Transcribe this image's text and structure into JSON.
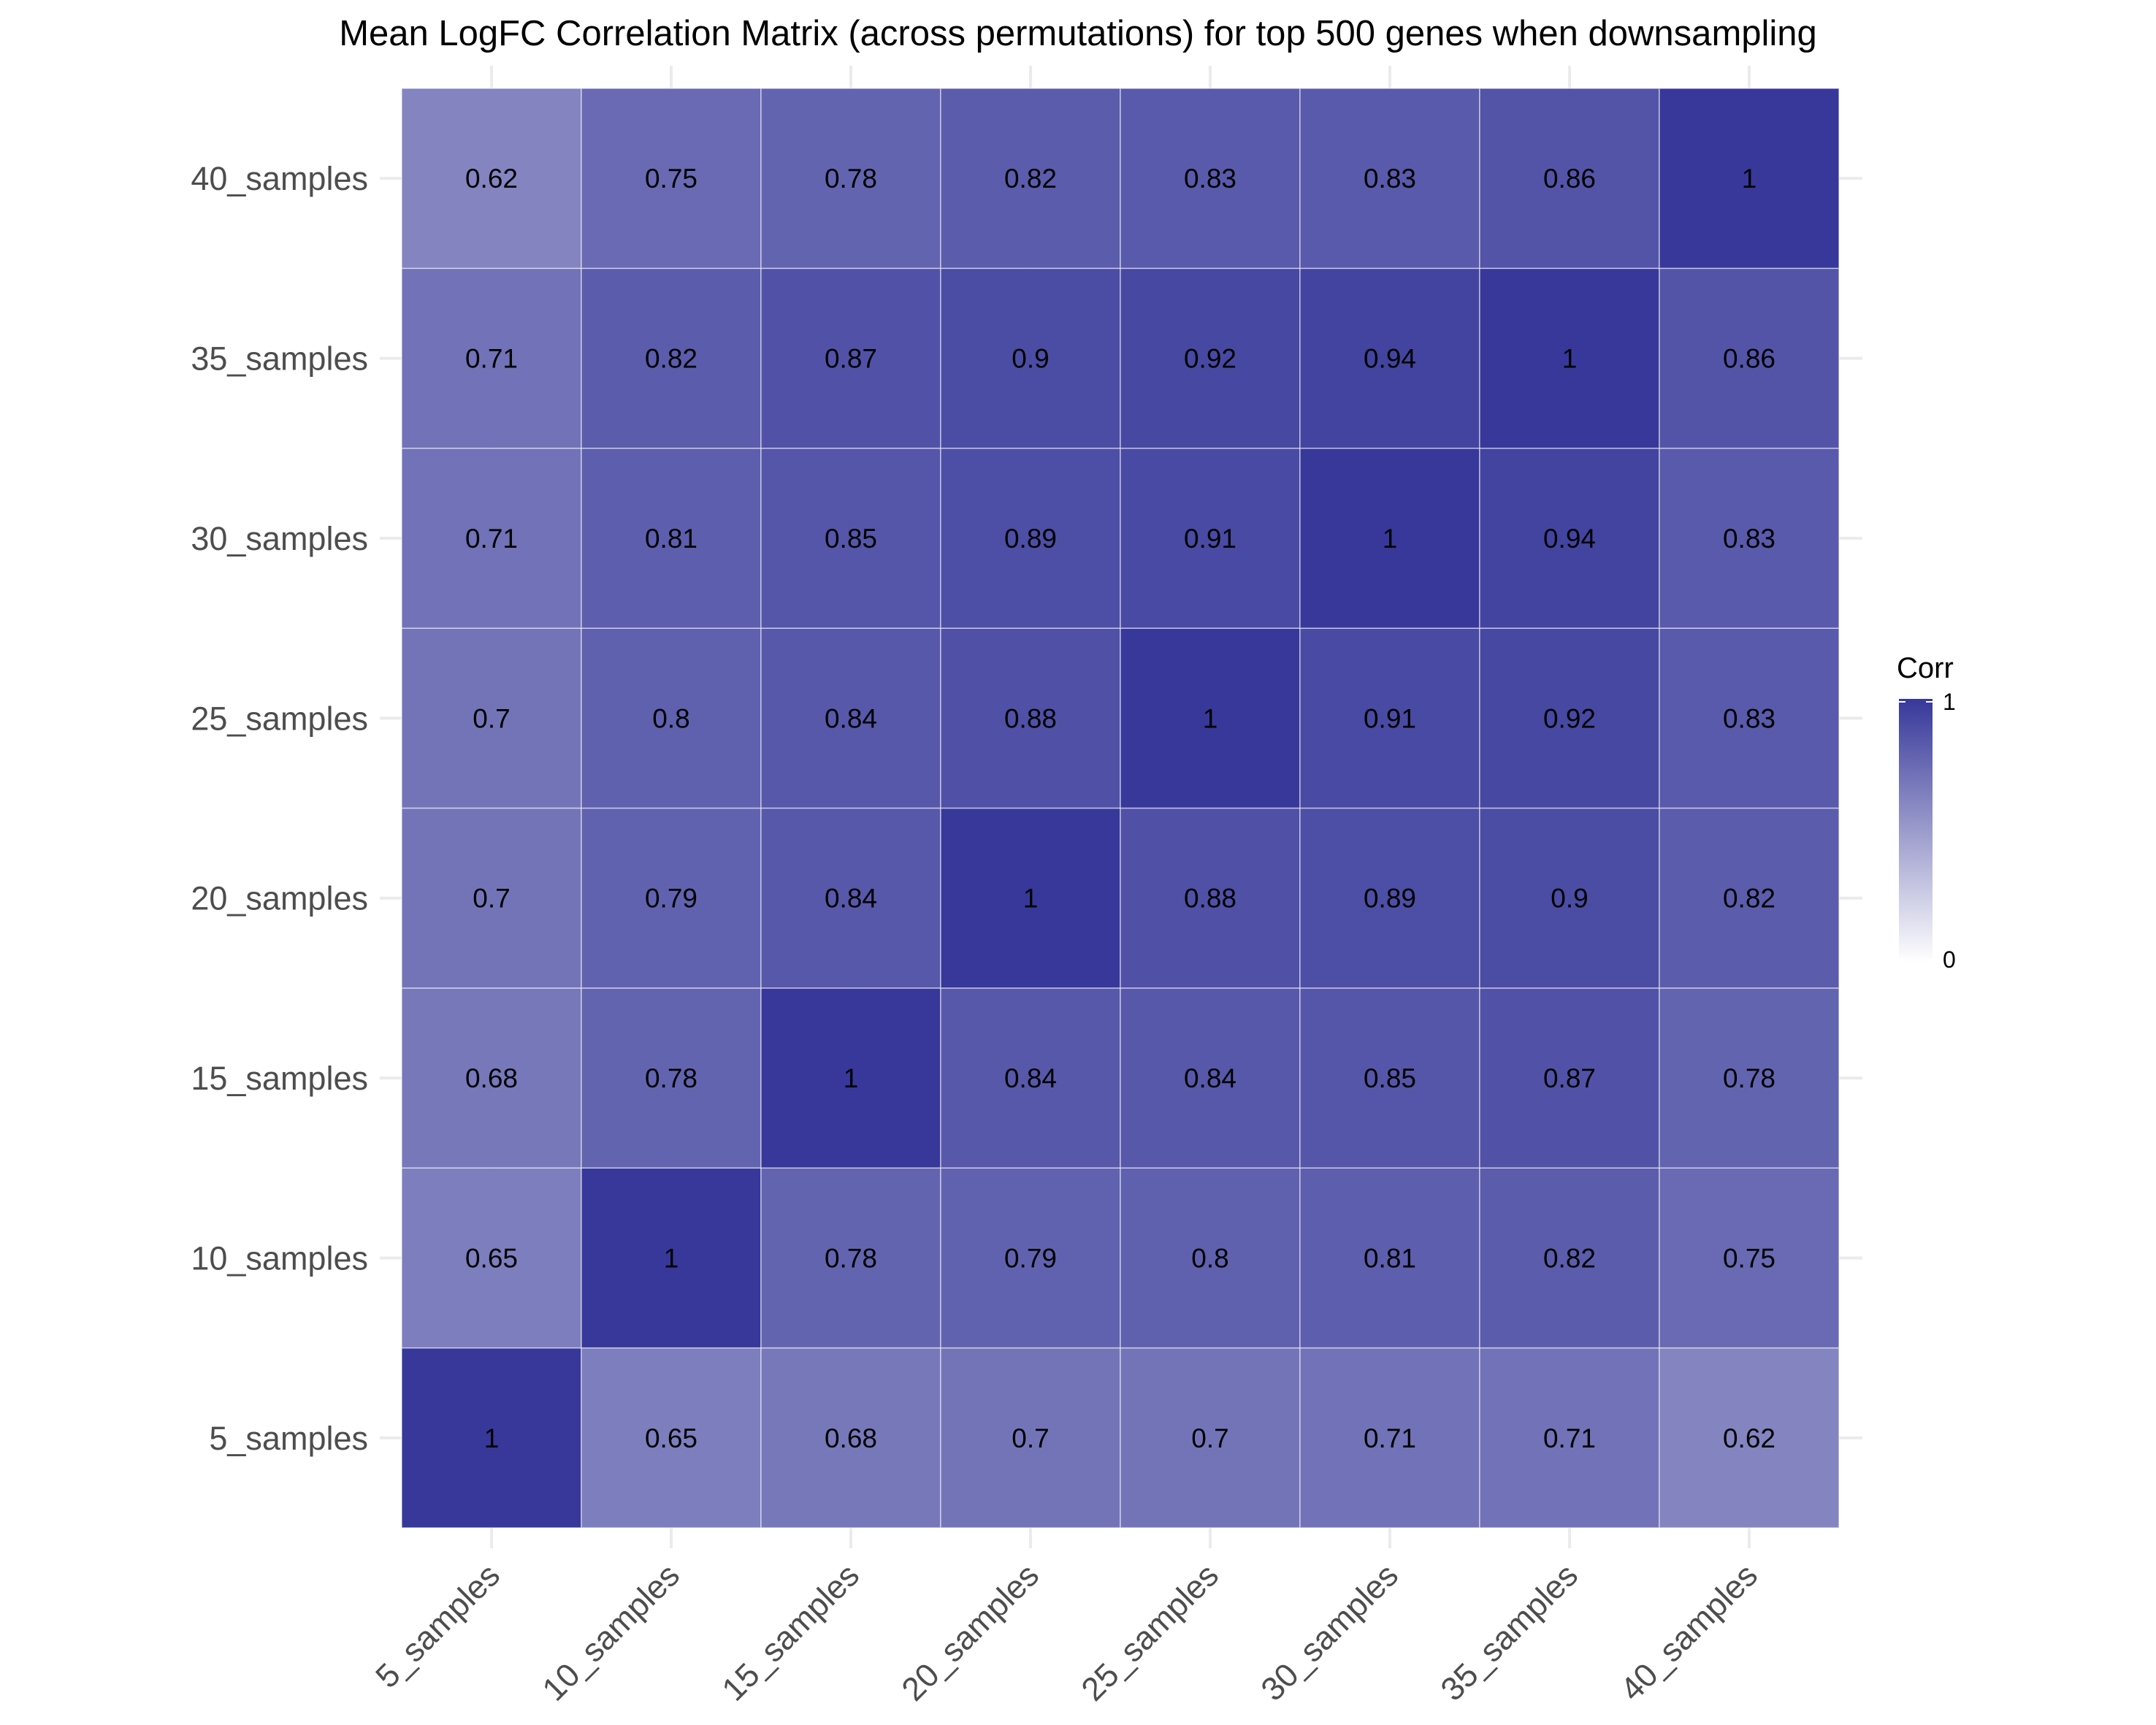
{
  "chart_data": {
    "type": "heatmap",
    "title": "Mean LogFC Correlation Matrix (across permutations) for top 500 genes when downsampling",
    "xlabel": "",
    "ylabel": "",
    "x_categories": [
      "5_samples",
      "10_samples",
      "15_samples",
      "20_samples",
      "25_samples",
      "30_samples",
      "35_samples",
      "40_samples"
    ],
    "y_categories": [
      "5_samples",
      "10_samples",
      "15_samples",
      "20_samples",
      "25_samples",
      "30_samples",
      "35_samples",
      "40_samples"
    ],
    "values": [
      [
        1,
        0.65,
        0.68,
        0.7,
        0.7,
        0.71,
        0.71,
        0.62
      ],
      [
        0.65,
        1,
        0.78,
        0.79,
        0.8,
        0.81,
        0.82,
        0.75
      ],
      [
        0.68,
        0.78,
        1,
        0.84,
        0.84,
        0.85,
        0.87,
        0.78
      ],
      [
        0.7,
        0.79,
        0.84,
        1,
        0.88,
        0.89,
        0.9,
        0.82
      ],
      [
        0.7,
        0.8,
        0.84,
        0.88,
        1,
        0.91,
        0.92,
        0.83
      ],
      [
        0.71,
        0.81,
        0.85,
        0.89,
        0.91,
        1,
        0.94,
        0.83
      ],
      [
        0.71,
        0.82,
        0.87,
        0.9,
        0.92,
        0.94,
        1,
        0.86
      ],
      [
        0.62,
        0.75,
        0.78,
        0.82,
        0.83,
        0.83,
        0.86,
        1
      ]
    ],
    "values_layout": "values[yIndex][xIndex], yIndex 0 = bottom row (5_samples)",
    "colorscale": {
      "low": "#ffffff",
      "high": "#37389a",
      "range": [
        0,
        1
      ]
    },
    "legend": {
      "title": "Corr",
      "placement": "right",
      "labels": [
        "1",
        "0"
      ]
    },
    "grid": true
  }
}
